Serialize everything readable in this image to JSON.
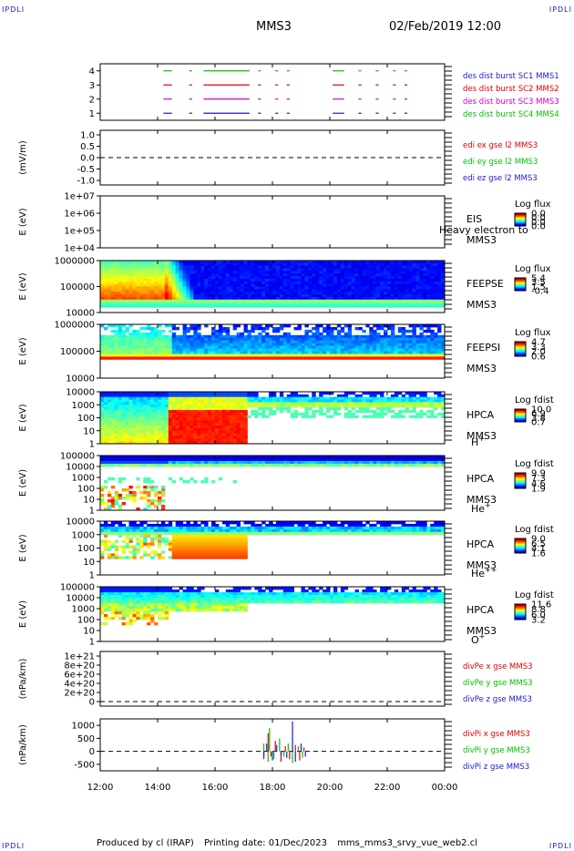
{
  "page": {
    "corner_label": "IPDLI",
    "mission": "MMS3",
    "date_time": "02/Feb/2019 12:00",
    "footer": {
      "produced_by": "Produced by cl (IRAP)",
      "printing_date": "Printing date: 01/Dec/2023",
      "filename": "mms_mms3_srvy_vue_web2.cl"
    }
  },
  "chart_data": [
    {
      "id": "burst",
      "type": "scatter",
      "ylim": [
        0.5,
        4.5
      ],
      "yticks": [
        "1",
        "2",
        "3",
        "4"
      ],
      "series": [
        {
          "name": "des dist burst SC1 MMS1",
          "color": "#1a1acc",
          "y": 1,
          "segments": [
            [
              14.2,
              14.5
            ],
            [
              15.1,
              15.2
            ],
            [
              15.6,
              17.2
            ],
            [
              17.5,
              17.6
            ],
            [
              18.1,
              18.2
            ],
            [
              18.5,
              18.6
            ],
            [
              20.1,
              20.5
            ],
            [
              21.0,
              21.1
            ],
            [
              21.6,
              21.7
            ],
            [
              22.2,
              22.3
            ],
            [
              22.6,
              22.7
            ]
          ]
        },
        {
          "name": "des dist burst SC2 MMS2",
          "color": "#e00000",
          "y": 3,
          "segments": [
            [
              14.2,
              14.5
            ],
            [
              15.1,
              15.2
            ],
            [
              15.6,
              17.2
            ],
            [
              17.5,
              17.6
            ],
            [
              18.1,
              18.2
            ],
            [
              18.5,
              18.6
            ],
            [
              20.1,
              20.5
            ],
            [
              21.0,
              21.1
            ],
            [
              21.6,
              21.7
            ],
            [
              22.2,
              22.3
            ],
            [
              22.6,
              22.7
            ]
          ]
        },
        {
          "name": "des dist burst SC3 MMS3",
          "color": "#cc00cc",
          "y": 2,
          "segments": [
            [
              14.2,
              14.5
            ],
            [
              15.1,
              15.2
            ],
            [
              15.6,
              17.2
            ],
            [
              17.5,
              17.6
            ],
            [
              18.1,
              18.2
            ],
            [
              18.5,
              18.6
            ],
            [
              20.1,
              20.5
            ],
            [
              21.0,
              21.1
            ],
            [
              21.6,
              21.7
            ],
            [
              22.2,
              22.3
            ],
            [
              22.6,
              22.7
            ]
          ]
        },
        {
          "name": "des dist burst SC4 MMS4",
          "color": "#00c000",
          "y": 4,
          "segments": [
            [
              14.2,
              14.5
            ],
            [
              15.1,
              15.2
            ],
            [
              15.6,
              17.2
            ],
            [
              17.5,
              17.6
            ],
            [
              18.1,
              18.2
            ],
            [
              18.5,
              18.6
            ],
            [
              20.1,
              20.5
            ],
            [
              21.0,
              21.1
            ],
            [
              21.6,
              21.7
            ],
            [
              22.2,
              22.3
            ],
            [
              22.6,
              22.7
            ]
          ]
        }
      ]
    },
    {
      "id": "edi",
      "type": "line",
      "ylabel": "(mV/m)",
      "ylim": [
        -1.2,
        1.2
      ],
      "yticks": [
        "1.0",
        "0.5",
        "0.0",
        "-0.5",
        "-1.0"
      ],
      "ytick_values": [
        1.0,
        0.5,
        0.0,
        -0.5,
        -1.0
      ],
      "series": [
        {
          "name": "edi ex gse l2 MMS3",
          "color": "#e00000"
        },
        {
          "name": "edi ey gse l2 MMS3",
          "color": "#00c000"
        },
        {
          "name": "edi ez gse l2 MMS3",
          "color": "#1a1acc"
        }
      ]
    },
    {
      "id": "eis",
      "type": "heatmap",
      "ylabel": "E (eV)",
      "yticks": [
        "1e+07",
        "1e+06",
        "1e+05",
        "1e+04"
      ],
      "label_top": "EIS",
      "label_mid": "Heavy electron to",
      "label_bottom": "MMS3",
      "colorbar_title": "Log flux",
      "colorbar_ticks": [
        "0.0",
        "0.0",
        "0.0",
        "0.0"
      ]
    },
    {
      "id": "feepse",
      "type": "heatmap",
      "ylabel": "E (eV)",
      "yticks": [
        "1000000",
        "100000",
        "10000"
      ],
      "label_top": "FEEPSE",
      "label_bottom": "MMS3",
      "colorbar_title": "Log flux",
      "colorbar_ticks": [
        "5.4",
        "3.5",
        "1.5",
        "-0.4"
      ]
    },
    {
      "id": "feepsi",
      "type": "heatmap",
      "ylabel": "E (eV)",
      "yticks": [
        "1000000",
        "100000",
        "10000"
      ],
      "label_top": "FEEPSI",
      "label_bottom": "MMS3",
      "colorbar_title": "Log flux",
      "colorbar_ticks": [
        "4.7",
        "3.3",
        "2.0",
        "0.6"
      ]
    },
    {
      "id": "hpca_h",
      "type": "heatmap",
      "ylabel": "E (eV)",
      "yticks": [
        "10000",
        "1000",
        "100",
        "10",
        "1"
      ],
      "label_top": "HPCA",
      "label_bottom": "MMS3",
      "species": "H",
      "species_charge": "+",
      "colorbar_title": "Log fdist",
      "colorbar_ticks": [
        "10.0",
        "6.9",
        "3.8",
        "0.7"
      ]
    },
    {
      "id": "hpca_he",
      "type": "heatmap",
      "ylabel": "E (eV)",
      "yticks": [
        "100000",
        "10000",
        "1000",
        "100",
        "10",
        "1"
      ],
      "label_top": "HPCA",
      "label_bottom": "MMS3",
      "species": "He",
      "species_charge": "+",
      "colorbar_title": "Log fdist",
      "colorbar_ticks": [
        "9.9",
        "7.3",
        "4.6",
        "1.9"
      ]
    },
    {
      "id": "hpca_hepp",
      "type": "heatmap",
      "ylabel": "E (eV)",
      "yticks": [
        "10000",
        "1000",
        "100",
        "10",
        "1"
      ],
      "label_top": "HPCA",
      "label_bottom": "MMS3",
      "species": "He",
      "species_charge": "++",
      "colorbar_title": "Log fdist",
      "colorbar_ticks": [
        "9.0",
        "6.5",
        "4.1",
        "1.6"
      ]
    },
    {
      "id": "hpca_o",
      "type": "heatmap",
      "ylabel": "E (eV)",
      "yticks": [
        "100000",
        "10000",
        "1000",
        "100",
        "10",
        "1"
      ],
      "label_top": "HPCA",
      "label_bottom": "MMS3",
      "species": "O",
      "species_charge": "+",
      "colorbar_title": "Log fdist",
      "colorbar_ticks": [
        "11.6",
        "8.8",
        "6.0",
        "3.2"
      ]
    },
    {
      "id": "divpe",
      "type": "line",
      "ylabel": "(nPa/km)",
      "ylim": [
        -1e+20,
        1.1e+21
      ],
      "yticks": [
        "1e+21",
        "8e+20",
        "6e+20",
        "4e+20",
        "2e+20",
        "0"
      ],
      "ytick_values": [
        1e+21,
        8e+20,
        6e+20,
        4e+20,
        2e+20,
        0
      ],
      "series": [
        {
          "name": "divPe x gse MMS3",
          "color": "#e00000"
        },
        {
          "name": "divPe y gse MMS3",
          "color": "#00c000"
        },
        {
          "name": "divPe z gse MMS3",
          "color": "#1a1acc"
        }
      ]
    },
    {
      "id": "divpi",
      "type": "line",
      "ylabel": "(nPa/km)",
      "ylim": [
        -750,
        1250
      ],
      "yticks": [
        "1000",
        "500",
        "0",
        "-500"
      ],
      "ytick_values": [
        1000,
        500,
        0,
        -500
      ],
      "series": [
        {
          "name": "divPi x gse MMS3",
          "color": "#e00000",
          "points": [
            [
              17.7,
              -300
            ],
            [
              17.85,
              700
            ],
            [
              17.95,
              -200
            ],
            [
              18.1,
              400
            ],
            [
              18.3,
              -400
            ],
            [
              18.45,
              200
            ],
            [
              18.6,
              -300
            ],
            [
              18.8,
              250
            ],
            [
              18.95,
              -350
            ],
            [
              19.1,
              150
            ]
          ]
        },
        {
          "name": "divPi y gse MMS3",
          "color": "#00c000",
          "points": [
            [
              17.7,
              300
            ],
            [
              17.85,
              -400
            ],
            [
              17.9,
              900
            ],
            [
              18.05,
              -300
            ],
            [
              18.25,
              500
            ],
            [
              18.4,
              -200
            ],
            [
              18.55,
              300
            ],
            [
              18.7,
              -450
            ],
            [
              18.9,
              200
            ],
            [
              19.05,
              -250
            ]
          ]
        },
        {
          "name": "divPi z gse MMS3",
          "color": "#1a1acc",
          "points": [
            [
              17.7,
              -200
            ],
            [
              17.8,
              300
            ],
            [
              18.0,
              -350
            ],
            [
              18.15,
              250
            ],
            [
              18.3,
              -150
            ],
            [
              18.5,
              -250
            ],
            [
              18.7,
              1150
            ],
            [
              18.8,
              -400
            ],
            [
              19.0,
              300
            ],
            [
              19.15,
              -200
            ]
          ]
        }
      ]
    }
  ],
  "time_axis": {
    "labels": [
      "12:00",
      "14:00",
      "16:00",
      "18:00",
      "20:00",
      "22:00",
      "00:00"
    ],
    "values": [
      12,
      14,
      16,
      18,
      20,
      22,
      24
    ]
  }
}
